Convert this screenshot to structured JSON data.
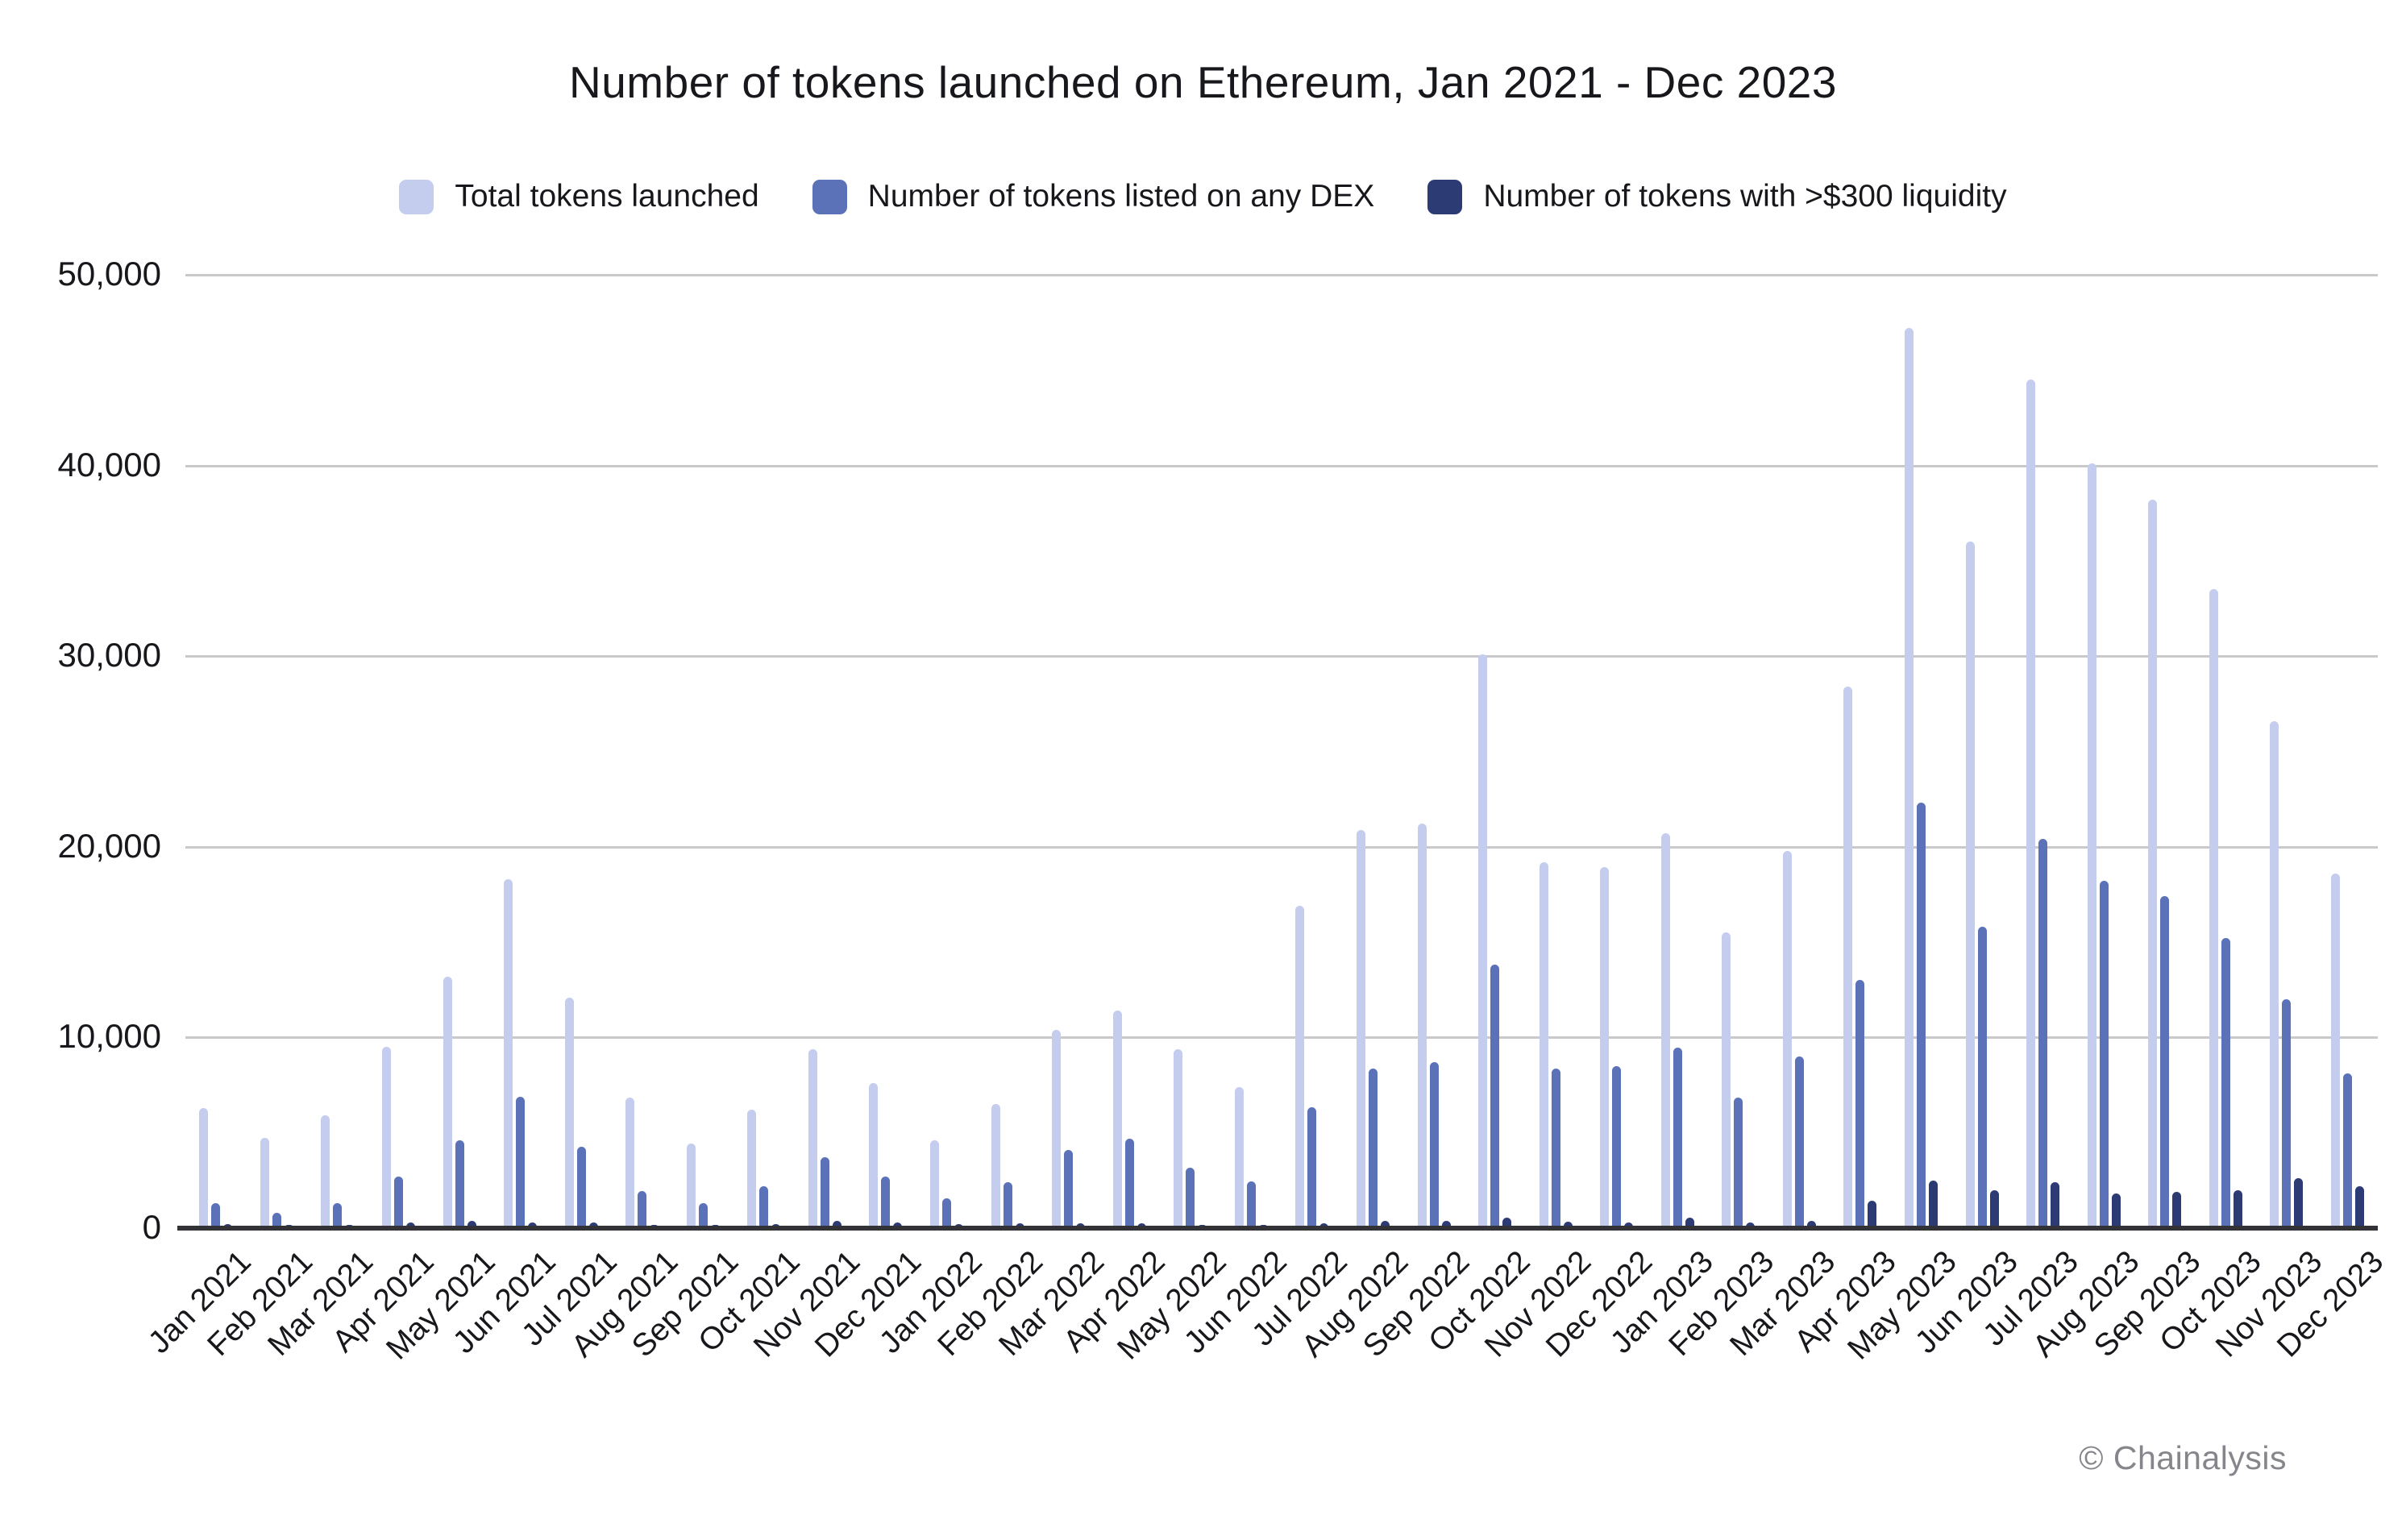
{
  "title": "Number of tokens launched on Ethereum, Jan 2021 - Dec 2023",
  "watermark": "© Chainalysis",
  "legend": [
    {
      "label": "Total tokens launched",
      "color": "#c4cdee"
    },
    {
      "label": "Number of tokens listed on any DEX",
      "color": "#5b72b8"
    },
    {
      "label": "Number of tokens with >$300 liquidity",
      "color": "#2c3b73"
    }
  ],
  "y_axis": {
    "ticks": [
      "50,000",
      "40,000",
      "30,000",
      "20,000",
      "10,000",
      "0"
    ]
  },
  "chart_data": {
    "type": "bar",
    "title": "Number of tokens launched on Ethereum, Jan 2021 - Dec 2023",
    "xlabel": "",
    "ylabel": "",
    "ylim": [
      0,
      50000
    ],
    "grid": true,
    "legend_position": "top",
    "categories": [
      "Jan 2021",
      "Feb 2021",
      "Mar 2021",
      "Apr 2021",
      "May 2021",
      "Jun 2021",
      "Jul 2021",
      "Aug 2021",
      "Sep 2021",
      "Oct 2021",
      "Nov 2021",
      "Dec 2021",
      "Jan 2022",
      "Feb 2022",
      "Mar 2022",
      "Apr 2022",
      "May 2022",
      "Jun 2022",
      "Jul 2022",
      "Aug 2022",
      "Sep 2022",
      "Oct 2022",
      "Nov 2022",
      "Dec 2022",
      "Jan 2023",
      "Feb 2023",
      "Mar 2023",
      "Apr 2023",
      "May 2023",
      "Jun 2023",
      "Jul 2023",
      "Aug 2023",
      "Sep 2023",
      "Oct 2023",
      "Nov 2023",
      "Dec 2023"
    ],
    "series": [
      {
        "name": "Total tokens launched",
        "color": "#c4cdee",
        "values": [
          6300,
          4750,
          5900,
          9500,
          13200,
          18300,
          12100,
          6850,
          4450,
          6200,
          9400,
          7600,
          4600,
          6500,
          10400,
          11400,
          9400,
          7400,
          16900,
          20900,
          21200,
          30100,
          19200,
          18950,
          20700,
          15500,
          19800,
          28400,
          47200,
          36000,
          44500,
          40100,
          38200,
          33500,
          26600,
          18600
        ]
      },
      {
        "name": "Number of tokens listed on any DEX",
        "color": "#5b72b8",
        "values": [
          1300,
          800,
          1300,
          2700,
          4600,
          6900,
          4250,
          1950,
          1300,
          2200,
          3700,
          2700,
          1550,
          2400,
          4100,
          4700,
          3150,
          2450,
          6350,
          8350,
          8700,
          13800,
          8350,
          8500,
          9450,
          6850,
          9000,
          13000,
          22300,
          15800,
          20400,
          18200,
          17400,
          15200,
          12000,
          8100
        ]
      },
      {
        "name": "Number of tokens with >$300 liquidity",
        "color": "#2c3b73",
        "values": [
          200,
          150,
          150,
          300,
          400,
          300,
          300,
          150,
          150,
          200,
          400,
          300,
          200,
          250,
          250,
          250,
          150,
          150,
          250,
          400,
          400,
          550,
          350,
          300,
          550,
          300,
          400,
          1450,
          2500,
          2000,
          2400,
          1800,
          1900,
          2000,
          2600,
          2200
        ]
      }
    ]
  }
}
